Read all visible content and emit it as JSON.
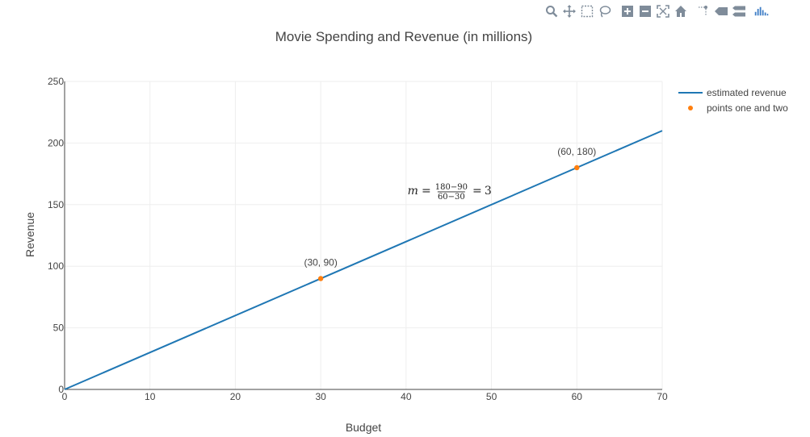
{
  "modebar": {
    "icon_color": "#7f8c9a",
    "logo_color": "#3f7ec6",
    "buttons": [
      "zoom-icon",
      "pan-icon",
      "box-select-icon",
      "lasso-select-icon",
      "zoom-in-icon",
      "zoom-out-icon",
      "autoscale-icon",
      "reset-axes-icon",
      "spike-lines-icon",
      "hover-closest-icon",
      "hover-compare-icon",
      "plotly-logo-icon"
    ]
  },
  "chart_data": {
    "type": "line",
    "title": "Movie Spending and Revenue (in millions)",
    "xlabel": "Budget",
    "ylabel": "Revenue",
    "xlim": [
      0,
      70
    ],
    "ylim": [
      0,
      250
    ],
    "x_ticks": [
      0,
      10,
      20,
      30,
      40,
      50,
      60,
      70
    ],
    "y_ticks": [
      0,
      50,
      100,
      150,
      200,
      250
    ],
    "grid": true,
    "legend_position": "top-right",
    "series": [
      {
        "name": "estimated revenue",
        "mode": "lines",
        "color": "#1f77b4",
        "x": [
          0,
          70
        ],
        "y": [
          0,
          210
        ]
      },
      {
        "name": "points one and two",
        "mode": "markers",
        "color": "#ff7f0e",
        "x": [
          30,
          60
        ],
        "y": [
          90,
          180
        ]
      }
    ],
    "annotations": [
      {
        "text": "(30, 90)",
        "x": 30,
        "y": 90
      },
      {
        "text": "(60, 180)",
        "x": 60,
        "y": 180
      }
    ],
    "formula": {
      "lhs": "m",
      "numerator": "180−90",
      "denominator": "60−30",
      "result": "3",
      "x": 40,
      "y": 180
    }
  }
}
